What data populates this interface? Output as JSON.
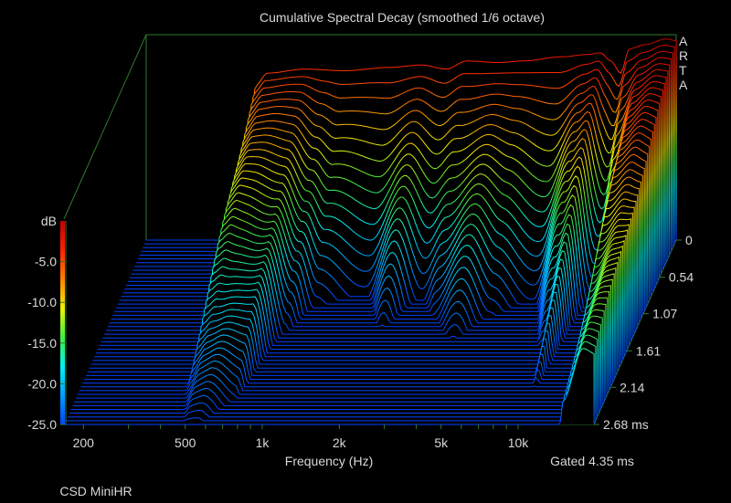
{
  "chart_data": {
    "type": "waterfall",
    "title": "Cumulative Spectral Decay (smoothed 1/6 octave)",
    "xlabel": "Frequency (Hz)",
    "ylabel": "dB",
    "zlabel": "ms",
    "xlim": [
      168,
      19800
    ],
    "ylim": [
      -25,
      0
    ],
    "tlim": [
      0,
      2.68
    ],
    "x_ticks": [
      200,
      300,
      400,
      500,
      600,
      700,
      800,
      900,
      1000,
      2000,
      3000,
      4000,
      5000,
      6000,
      7000,
      8000,
      9000,
      10000
    ],
    "x_tick_labels": [
      {
        "v": 200,
        "label": "200"
      },
      {
        "v": 500,
        "label": "500"
      },
      {
        "v": 1000,
        "label": "1k"
      },
      {
        "v": 2000,
        "label": "2k"
      },
      {
        "v": 5000,
        "label": "5k"
      },
      {
        "v": 10000,
        "label": "10k"
      }
    ],
    "y_tick_labels": [
      {
        "v": -5,
        "label": "-5.0"
      },
      {
        "v": -10,
        "label": "-10.0"
      },
      {
        "v": -15,
        "label": "-15.0"
      },
      {
        "v": -20,
        "label": "-20.0"
      },
      {
        "v": -25,
        "label": "-25.0"
      }
    ],
    "t_tick_labels": [
      {
        "v": 0,
        "label": "0"
      },
      {
        "v": 0.54,
        "label": "0.54"
      },
      {
        "v": 1.07,
        "label": "1.07"
      },
      {
        "v": 1.61,
        "label": "1.61"
      },
      {
        "v": 2.14,
        "label": "2.14"
      },
      {
        "v": 2.68,
        "label": "2.68 ms"
      }
    ],
    "slices": 50,
    "initial_response_db": [
      [
        150,
        -40
      ],
      [
        400,
        -32
      ],
      [
        450,
        -6
      ],
      [
        500,
        -4.5
      ],
      [
        700,
        -4
      ],
      [
        1000,
        -4.2
      ],
      [
        1500,
        -3.8
      ],
      [
        2000,
        -3.5
      ],
      [
        2500,
        -4
      ],
      [
        3000,
        -3
      ],
      [
        4000,
        -3.2
      ],
      [
        5000,
        -3
      ],
      [
        7000,
        -2.5
      ],
      [
        9000,
        -2.2
      ],
      [
        10000,
        -2
      ],
      [
        11000,
        -3
      ],
      [
        12000,
        -4.5
      ],
      [
        13000,
        -1.5
      ],
      [
        15000,
        -1
      ],
      [
        18000,
        -0.3
      ],
      [
        19800,
        -0.5
      ]
    ],
    "decay_rate_db_per_ms": [
      [
        150,
        30
      ],
      [
        450,
        8
      ],
      [
        550,
        8
      ],
      [
        700,
        9
      ],
      [
        850,
        16
      ],
      [
        1000,
        22
      ],
      [
        1500,
        26
      ],
      [
        2000,
        17
      ],
      [
        2500,
        24
      ],
      [
        3000,
        20
      ],
      [
        4000,
        15
      ],
      [
        5000,
        19
      ],
      [
        7000,
        26
      ],
      [
        9000,
        14
      ],
      [
        10000,
        11
      ],
      [
        11500,
        22
      ],
      [
        13000,
        18
      ],
      [
        15000,
        8
      ],
      [
        18000,
        6
      ],
      [
        19800,
        6
      ]
    ],
    "colormap": [
      "#0040ff",
      "#00a0ff",
      "#00f0f0",
      "#40f040",
      "#f0f000",
      "#ff8000",
      "#ff2000",
      "#c00000"
    ],
    "brand": "ARTA",
    "gated": "Gated 4.35 ms",
    "footer": "CSD MiniHR"
  }
}
